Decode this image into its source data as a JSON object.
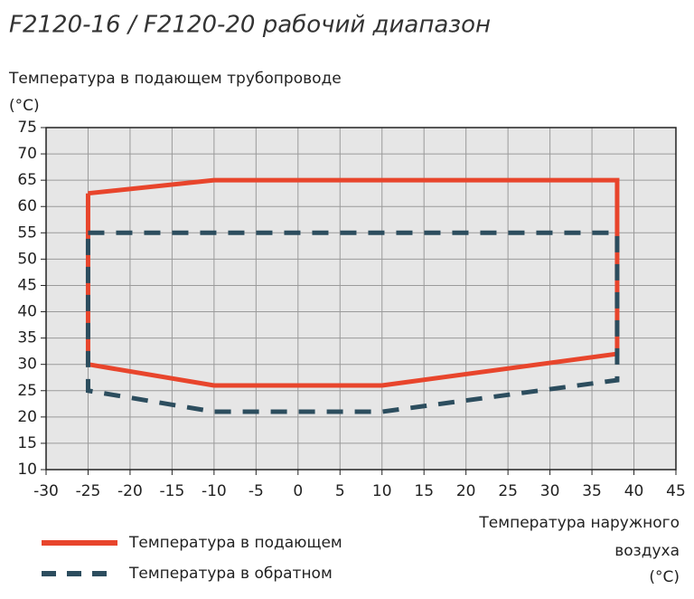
{
  "chart_data": {
    "type": "line",
    "title": "F2120-16 / F2120-20 рабочий диапазон",
    "y_label": [
      "Температура в подающем трубопроводе",
      "(°C)"
    ],
    "x_label": [
      "Температура наружного",
      "воздуха",
      "(°C)"
    ],
    "xlim": [
      -30,
      45
    ],
    "xticks": [
      -30,
      -25,
      -20,
      -15,
      -10,
      -5,
      0,
      5,
      10,
      15,
      20,
      25,
      30,
      35,
      40,
      45
    ],
    "ylim": [
      10,
      75
    ],
    "yticks": [
      10,
      15,
      20,
      25,
      30,
      35,
      40,
      45,
      50,
      55,
      60,
      65,
      70,
      75
    ],
    "grid": true,
    "series": [
      {
        "name": "Температура в подающем",
        "color": "#e8452c",
        "dashed": false,
        "x": [
          -25,
          -10,
          38,
          38,
          10,
          -10,
          -25,
          -25
        ],
        "values": [
          62.5,
          65,
          65,
          32,
          26,
          26,
          30,
          62.5
        ]
      },
      {
        "name": "Температура в обратном",
        "color": "#2c4d5e",
        "dashed": true,
        "x": [
          -25,
          38,
          38,
          10,
          -10,
          -25,
          -25
        ],
        "values": [
          55,
          55,
          27,
          21,
          21,
          25,
          55
        ]
      }
    ]
  }
}
